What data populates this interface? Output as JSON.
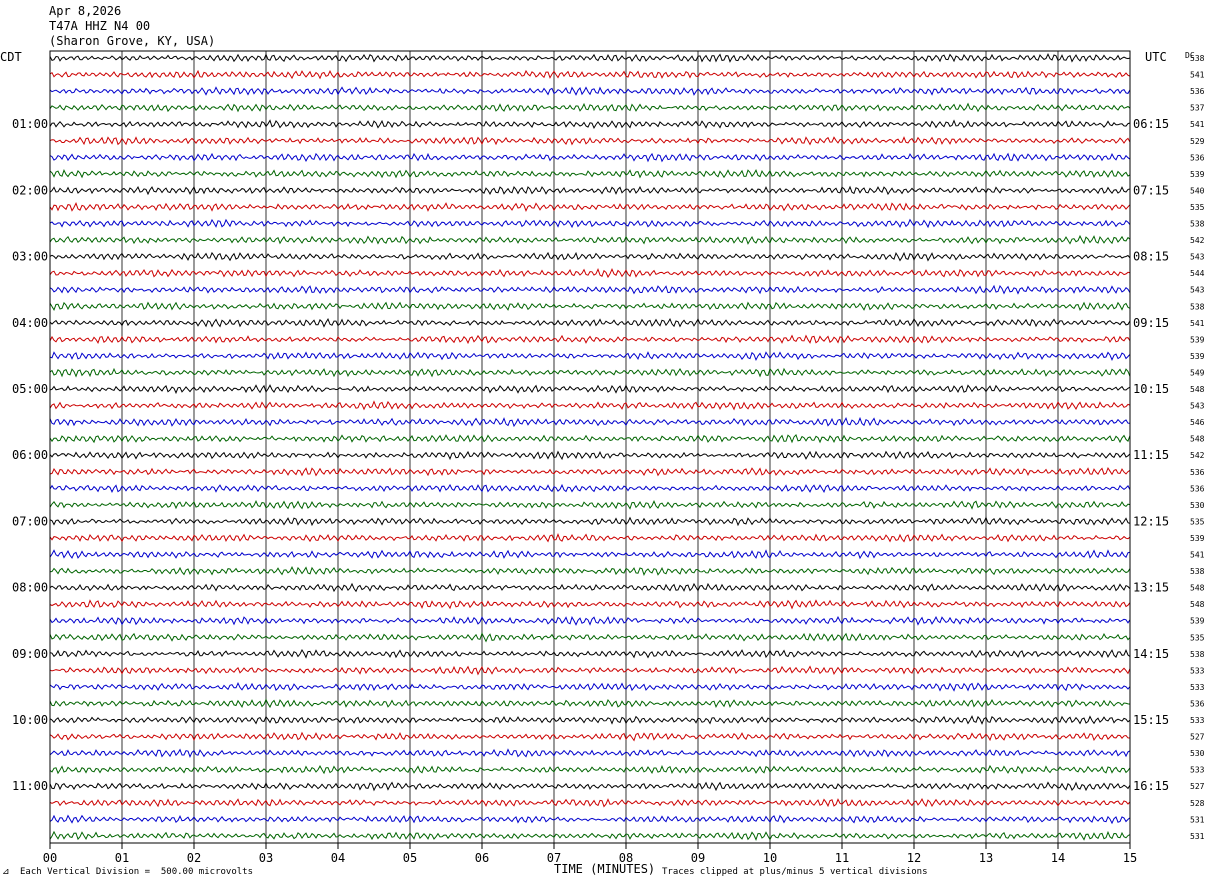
{
  "header": {
    "date": "Apr 8,2026",
    "station": "T47A HHZ N4 00",
    "location": "(Sharon Grove, KY, USA)"
  },
  "left_tz": "CDT",
  "right_tz": "UTC",
  "dc_label": "DC",
  "footer": {
    "scale": "Each Vertical Division =  500.00 microvolts",
    "clip": "Traces clipped at plus/minus 5 vertical divisions",
    "corner": "⊿"
  },
  "chart_data": {
    "type": "line",
    "title": "",
    "xlabel": "TIME (MINUTES)",
    "xlim": [
      0,
      15
    ],
    "x_ticks": [
      "00",
      "01",
      "02",
      "03",
      "04",
      "05",
      "06",
      "07",
      "08",
      "09",
      "10",
      "11",
      "12",
      "13",
      "14",
      "15"
    ],
    "grid": true,
    "trace_colors": [
      "#000000",
      "#cc0000",
      "#0000cc",
      "#006400"
    ],
    "rows_per_hour": 4,
    "left_hour_labels": [
      "01:00",
      "02:00",
      "03:00",
      "04:00",
      "05:00",
      "06:00",
      "07:00",
      "08:00",
      "09:00",
      "10:00",
      "11:00"
    ],
    "right_hour_labels": [
      "06:15",
      "07:15",
      "08:15",
      "09:15",
      "10:15",
      "11:15",
      "12:15",
      "13:15",
      "14:15",
      "15:15",
      "16:15"
    ],
    "dc_offsets": [
      538,
      541,
      536,
      537,
      541,
      529,
      536,
      539,
      540,
      535,
      538,
      542,
      543,
      544,
      543,
      538,
      541,
      539,
      539,
      549,
      548,
      543,
      546,
      548,
      542,
      536,
      536,
      530,
      535,
      539,
      541,
      538,
      548,
      548,
      539,
      535,
      538,
      533,
      533,
      536,
      533,
      527,
      530,
      533,
      527,
      528,
      531,
      531
    ]
  }
}
